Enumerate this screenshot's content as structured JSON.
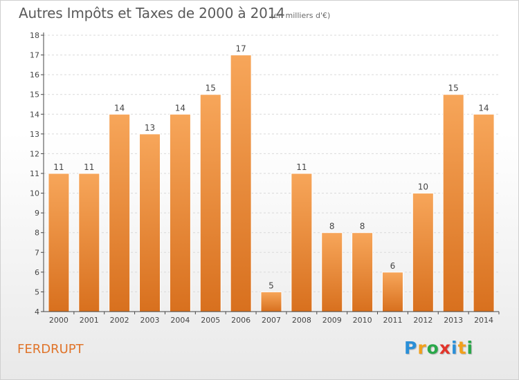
{
  "header": {
    "title": "Autres Impôts et Taxes de 2000 à 2014",
    "subtitle": "(en milliers d'€)"
  },
  "footer": {
    "town": "FERDRUPT",
    "logo_letters": [
      "P",
      "r",
      "o",
      "x",
      "i",
      "t",
      "i"
    ],
    "logo_colors": [
      "#2a8fd8",
      "#f2a01c",
      "#2aa84a",
      "#e2352b",
      "#2a8fd8",
      "#f2a01c",
      "#2aa84a"
    ]
  },
  "colors": {
    "bar_top": "#f7a65a",
    "bar_bottom": "#d8701e",
    "bar_edge": "#ffffff",
    "axis": "#444444",
    "grid": "#d9d9d9",
    "text": "#444444",
    "town": "#e0742a"
  },
  "chart_data": {
    "type": "bar",
    "title": "Autres Impôts et Taxes de 2000 à 2014",
    "subtitle": "(en milliers d'€)",
    "categories": [
      "2000",
      "2001",
      "2002",
      "2003",
      "2004",
      "2005",
      "2006",
      "2007",
      "2008",
      "2009",
      "2010",
      "2011",
      "2012",
      "2013",
      "2014"
    ],
    "values": [
      11,
      11,
      14,
      13,
      14,
      15,
      17,
      5,
      11,
      8,
      8,
      6,
      10,
      15,
      14
    ],
    "yticks": [
      4,
      5,
      6,
      7,
      8,
      9,
      10,
      11,
      12,
      13,
      14,
      15,
      16,
      17,
      18
    ],
    "ylim": [
      4,
      18
    ],
    "grid": true,
    "data_labels": true
  }
}
